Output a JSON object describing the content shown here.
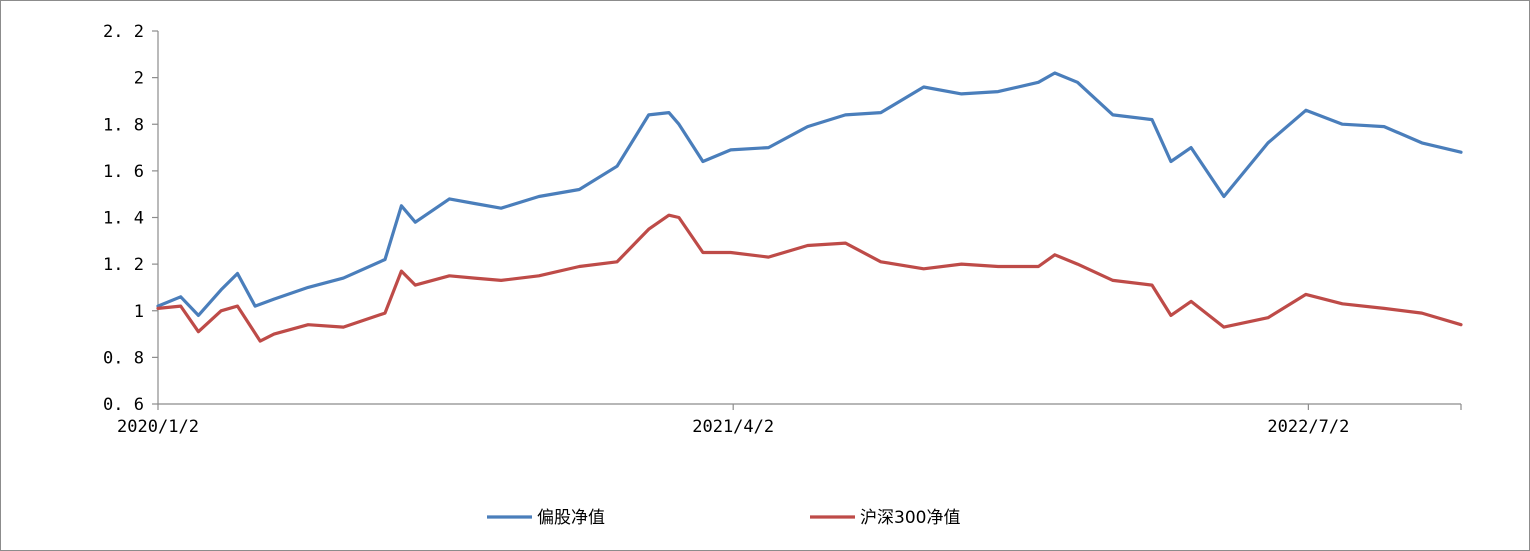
{
  "chart_data": {
    "type": "line",
    "x_tick_labels": [
      "2020/1/2",
      "2021/4/2",
      "2022/7/2"
    ],
    "x_range": [
      "2020/1/2",
      "2022/10/31"
    ],
    "ylim": [
      0.6,
      2.2
    ],
    "y_ticks": [
      0.6,
      0.8,
      1,
      1.2,
      1.4,
      1.6,
      1.8,
      2,
      2.2
    ],
    "y_tick_labels": [
      "0. 6",
      "0. 8",
      "1",
      "1. 2",
      "1. 4",
      "1. 6",
      "1. 8",
      "2",
      "2. 2"
    ],
    "grid": false,
    "legend_position": "bottom",
    "series": [
      {
        "name": "偏股净值",
        "color": "#4a7ebb",
        "points": [
          [
            "2020/1/2",
            1.02
          ],
          [
            "2020/1/20",
            1.06
          ],
          [
            "2020/2/3",
            0.98
          ],
          [
            "2020/2/21",
            1.09
          ],
          [
            "2020/3/5",
            1.16
          ],
          [
            "2020/3/19",
            1.02
          ],
          [
            "2020/4/3",
            1.05
          ],
          [
            "2020/4/30",
            1.1
          ],
          [
            "2020/5/28",
            1.14
          ],
          [
            "2020/6/30",
            1.22
          ],
          [
            "2020/7/13",
            1.45
          ],
          [
            "2020/7/24",
            1.38
          ],
          [
            "2020/8/20",
            1.48
          ],
          [
            "2020/9/9",
            1.46
          ],
          [
            "2020/9/30",
            1.44
          ],
          [
            "2020/10/30",
            1.49
          ],
          [
            "2020/12/1",
            1.52
          ],
          [
            "2020/12/31",
            1.62
          ],
          [
            "2021/1/25",
            1.84
          ],
          [
            "2021/2/10",
            1.85
          ],
          [
            "2021/2/18",
            1.8
          ],
          [
            "2021/3/9",
            1.64
          ],
          [
            "2021/3/31",
            1.69
          ],
          [
            "2021/4/30",
            1.7
          ],
          [
            "2021/5/31",
            1.79
          ],
          [
            "2021/6/30",
            1.84
          ],
          [
            "2021/7/28",
            1.85
          ],
          [
            "2021/8/31",
            1.96
          ],
          [
            "2021/9/30",
            1.93
          ],
          [
            "2021/10/29",
            1.94
          ],
          [
            "2021/11/30",
            1.98
          ],
          [
            "2021/12/13",
            2.02
          ],
          [
            "2021/12/31",
            1.98
          ],
          [
            "2022/1/28",
            1.84
          ],
          [
            "2022/2/28",
            1.82
          ],
          [
            "2022/3/15",
            1.64
          ],
          [
            "2022/3/31",
            1.7
          ],
          [
            "2022/4/26",
            1.49
          ],
          [
            "2022/5/31",
            1.72
          ],
          [
            "2022/6/30",
            1.86
          ],
          [
            "2022/7/29",
            1.8
          ],
          [
            "2022/8/31",
            1.79
          ],
          [
            "2022/9/30",
            1.72
          ],
          [
            "2022/10/31",
            1.68
          ]
        ]
      },
      {
        "name": "沪深300净值",
        "color": "#be4b48",
        "points": [
          [
            "2020/1/2",
            1.01
          ],
          [
            "2020/1/20",
            1.02
          ],
          [
            "2020/2/3",
            0.91
          ],
          [
            "2020/2/21",
            1.0
          ],
          [
            "2020/3/5",
            1.02
          ],
          [
            "2020/3/23",
            0.87
          ],
          [
            "2020/4/3",
            0.9
          ],
          [
            "2020/4/30",
            0.94
          ],
          [
            "2020/5/28",
            0.93
          ],
          [
            "2020/6/30",
            0.99
          ],
          [
            "2020/7/13",
            1.17
          ],
          [
            "2020/7/24",
            1.11
          ],
          [
            "2020/8/20",
            1.15
          ],
          [
            "2020/9/9",
            1.14
          ],
          [
            "2020/9/30",
            1.13
          ],
          [
            "2020/10/30",
            1.15
          ],
          [
            "2020/12/1",
            1.19
          ],
          [
            "2020/12/31",
            1.21
          ],
          [
            "2021/1/25",
            1.35
          ],
          [
            "2021/2/10",
            1.41
          ],
          [
            "2021/2/18",
            1.4
          ],
          [
            "2021/3/9",
            1.25
          ],
          [
            "2021/3/31",
            1.25
          ],
          [
            "2021/4/30",
            1.23
          ],
          [
            "2021/5/31",
            1.28
          ],
          [
            "2021/6/30",
            1.29
          ],
          [
            "2021/7/28",
            1.21
          ],
          [
            "2021/8/31",
            1.18
          ],
          [
            "2021/9/30",
            1.2
          ],
          [
            "2021/10/29",
            1.19
          ],
          [
            "2021/11/30",
            1.19
          ],
          [
            "2021/12/13",
            1.24
          ],
          [
            "2021/12/31",
            1.2
          ],
          [
            "2022/1/28",
            1.13
          ],
          [
            "2022/2/28",
            1.11
          ],
          [
            "2022/3/15",
            0.98
          ],
          [
            "2022/3/31",
            1.04
          ],
          [
            "2022/4/26",
            0.93
          ],
          [
            "2022/5/31",
            0.97
          ],
          [
            "2022/6/30",
            1.07
          ],
          [
            "2022/7/29",
            1.03
          ],
          [
            "2022/8/31",
            1.01
          ],
          [
            "2022/9/30",
            0.99
          ],
          [
            "2022/10/31",
            0.94
          ]
        ]
      }
    ]
  }
}
